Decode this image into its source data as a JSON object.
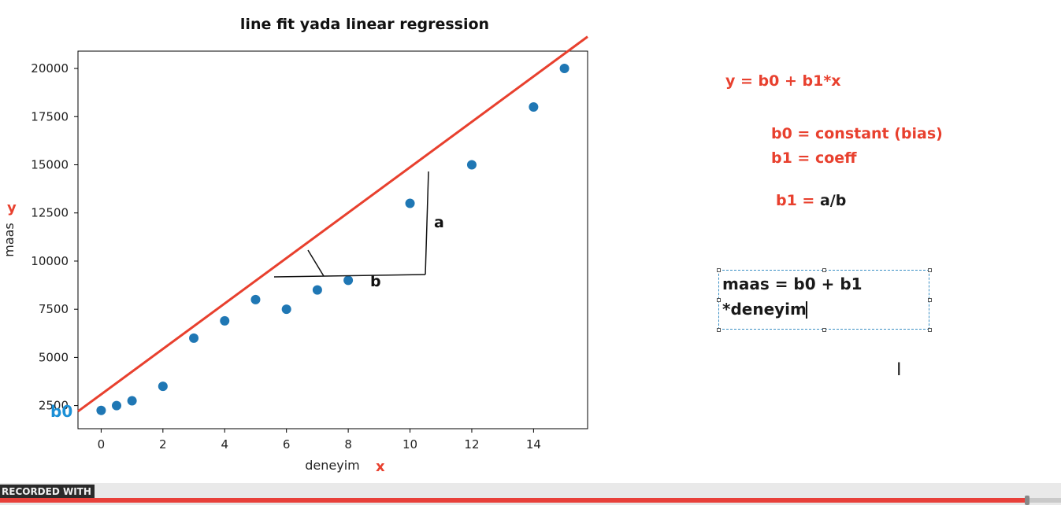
{
  "chart_data": {
    "type": "scatter",
    "title": "line fit yada linear regression",
    "xlabel": "deneyim",
    "ylabel": "maas",
    "xlim": [
      -0.75,
      15.75
    ],
    "ylim": [
      1300,
      20900
    ],
    "xticks": [
      0,
      2,
      4,
      6,
      8,
      10,
      12,
      14
    ],
    "yticks": [
      2500,
      5000,
      7500,
      10000,
      12500,
      15000,
      17500,
      20000
    ],
    "series": [
      {
        "x": [
          0,
          0.5,
          1,
          2,
          3,
          4,
          5,
          6,
          7,
          8,
          10,
          12,
          14,
          15
        ],
        "y": [
          2250,
          2500,
          2750,
          3500,
          6000,
          6900,
          8000,
          7500,
          8500,
          9000,
          13000,
          15000,
          18000,
          20000
        ],
        "color": "#1f77b4"
      }
    ],
    "fit_line": {
      "color": "#e8402e",
      "x": [
        -0.75,
        15.75
      ],
      "y": [
        2200,
        21650
      ]
    },
    "annotations": {
      "a_label": "a",
      "b_label": "b",
      "b0_label": "b0",
      "y_marker": "y",
      "x_marker": "x"
    }
  },
  "notes": {
    "equation": "y = b0 + b1*x",
    "b0_def": "b0 = constant (bias)",
    "b1_def": "b1 = coeff",
    "b1_eq_prefix": "b1 = ",
    "b1_eq_value": "a/b"
  },
  "textbox": {
    "line1": "maas = b0 + b1",
    "line2": "*deneyim"
  },
  "recorder": {
    "watermark": "RECORDED WITH",
    "progress": 0.968
  },
  "colors": {
    "annotation_red": "#e8402e",
    "b0_blue": "#1a8fd6",
    "marker_blue": "#1f77b4"
  }
}
